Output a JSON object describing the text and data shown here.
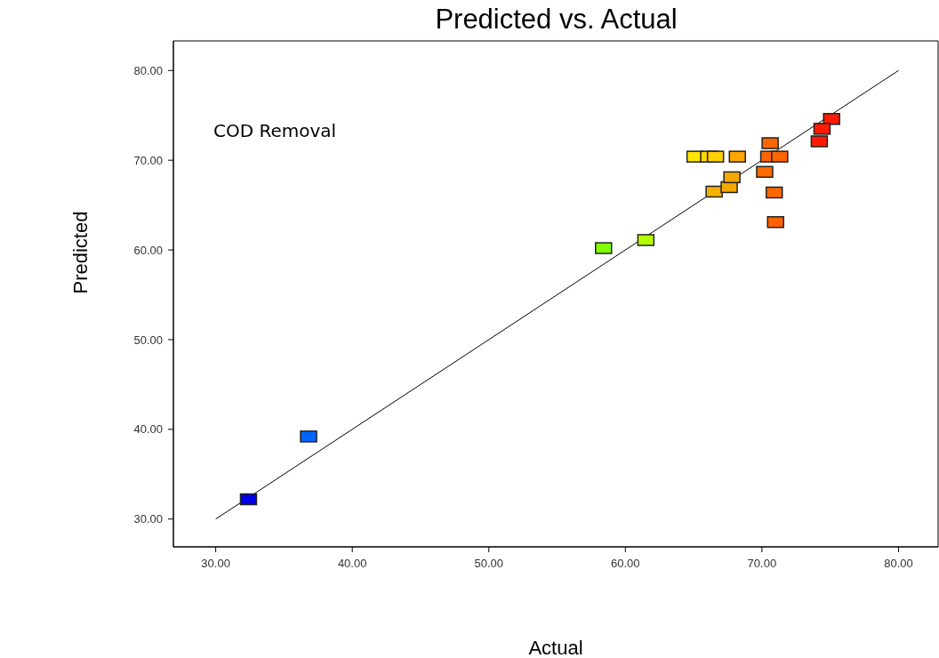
{
  "chart_data": {
    "type": "scatter",
    "title": "Predicted vs. Actual",
    "xlabel": "Actual",
    "ylabel": "Predicted",
    "annotations": [
      "COD Removal"
    ],
    "xlim": [
      26.9,
      82.9
    ],
    "ylim": [
      26.9,
      83.3
    ],
    "xticks": [
      {
        "value": 30,
        "label": "30.00"
      },
      {
        "value": 40,
        "label": "40.00"
      },
      {
        "value": 50,
        "label": "50.00"
      },
      {
        "value": 60,
        "label": "60.00"
      },
      {
        "value": 70,
        "label": "70.00"
      },
      {
        "value": 80,
        "label": "80.00"
      }
    ],
    "yticks": [
      {
        "value": 30,
        "label": "30.00"
      },
      {
        "value": 40,
        "label": "40.00"
      },
      {
        "value": 50,
        "label": "50.00"
      },
      {
        "value": 60,
        "label": "60.00"
      },
      {
        "value": 70,
        "label": "70.00"
      },
      {
        "value": 80,
        "label": "80.00"
      }
    ],
    "series": [
      {
        "marker": "square",
        "x": [
          32.4,
          36.8,
          58.4,
          61.5,
          65.1,
          66.1,
          66.6,
          68.2,
          66.5,
          67.6,
          67.8,
          70.6,
          70.5,
          71.3,
          70.2,
          70.9,
          71.0,
          75.1,
          74.4,
          74.2
        ],
        "values": [
          32.2,
          39.2,
          60.2,
          61.1,
          70.4,
          70.4,
          70.4,
          70.4,
          66.5,
          67.0,
          68.1,
          71.9,
          70.4,
          70.4,
          68.7,
          66.4,
          63.1,
          74.6,
          73.5,
          72.1
        ],
        "colors": [
          "#0000e6",
          "#0066ff",
          "#80ff00",
          "#b3ff00",
          "#ffe600",
          "#ffd700",
          "#ffd000",
          "#ffa500",
          "#f5b000",
          "#f5a800",
          "#f5a800",
          "#ff6600",
          "#ff6600",
          "#ff6600",
          "#ff6a00",
          "#ff6600",
          "#ff6000",
          "#ff1a00",
          "#ff1a00",
          "#ff1a00"
        ]
      },
      {
        "type": "line",
        "marker": "none",
        "x": [
          30,
          80
        ],
        "values": [
          30,
          80
        ],
        "color": "#000000"
      }
    ]
  }
}
